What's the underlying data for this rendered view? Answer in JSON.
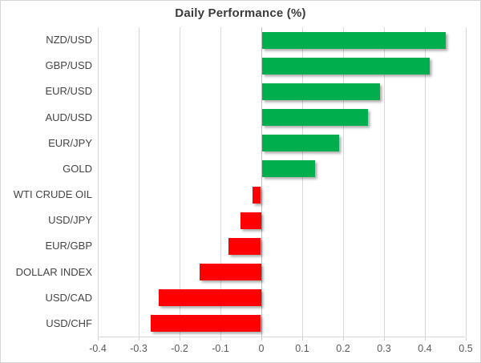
{
  "chart_data": {
    "type": "bar",
    "orientation": "horizontal",
    "title": "Daily Performance (%)",
    "categories": [
      "NZD/USD",
      "GBP/USD",
      "EUR/USD",
      "AUD/USD",
      "EUR/JPY",
      "GOLD",
      "WTI CRUDE OIL",
      "USD/JPY",
      "EUR/GBP",
      "DOLLAR INDEX",
      "USD/CAD",
      "USD/CHF"
    ],
    "values": [
      0.45,
      0.41,
      0.29,
      0.26,
      0.19,
      0.13,
      -0.02,
      -0.05,
      -0.08,
      -0.15,
      -0.25,
      -0.27
    ],
    "xlabel": "",
    "ylabel": "",
    "xlim": [
      -0.4,
      0.5
    ],
    "x_ticks": [
      -0.4,
      -0.3,
      -0.2,
      -0.1,
      0,
      0.1,
      0.2,
      0.3,
      0.4,
      0.5
    ],
    "x_tick_labels": [
      "-0.4",
      "-0.3",
      "-0.2",
      "-0.1",
      "0",
      "0.1",
      "0.2",
      "0.3",
      "0.4",
      "0.5"
    ],
    "grid": true,
    "legend": false,
    "positive_color": "#00AE4E",
    "negative_color": "#FF0000",
    "gridline_color": "#d9d9d9",
    "title_color": "#3b3b3b",
    "label_color": "#444444",
    "tick_label_color": "#595959"
  }
}
